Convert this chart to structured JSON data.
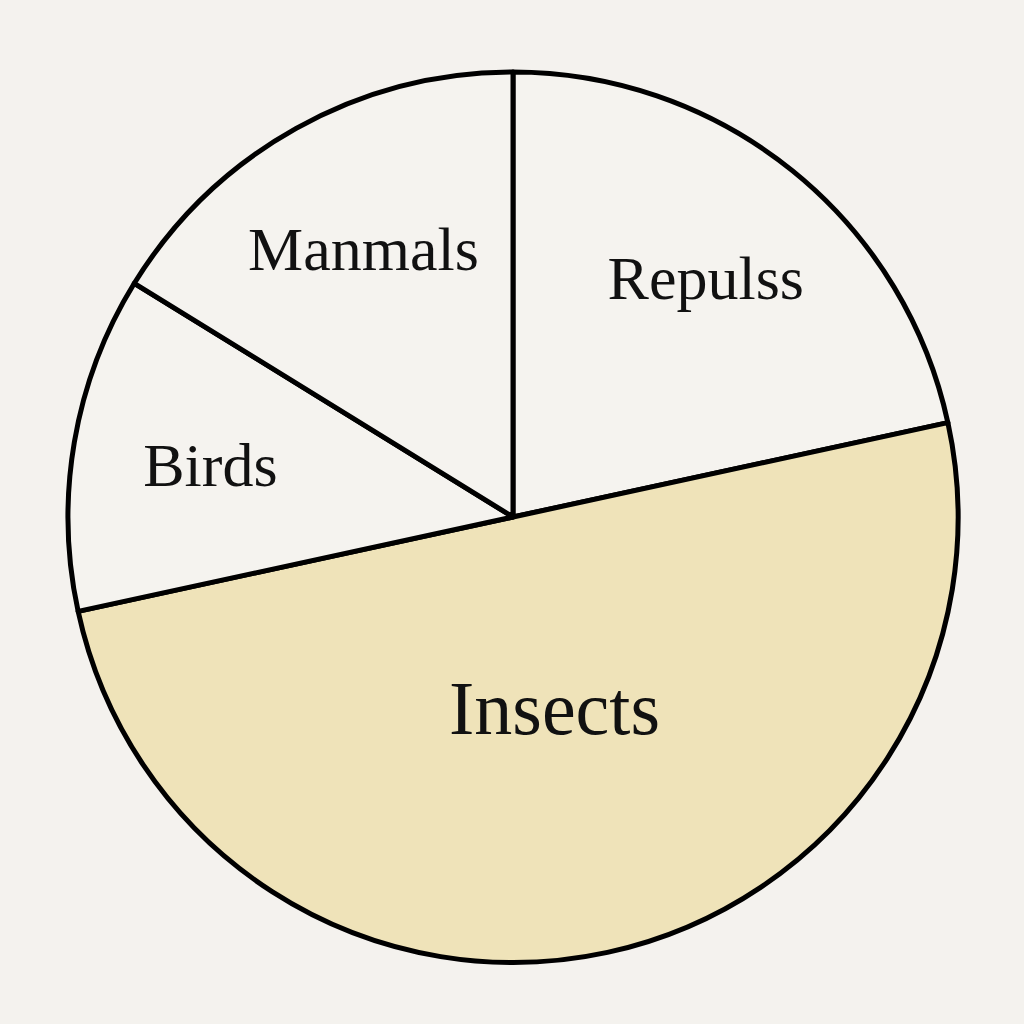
{
  "chart_data": {
    "type": "pie",
    "categories": [
      "Repulss",
      "Insects",
      "Birds",
      "Manmals"
    ],
    "values": [
      21.6,
      50,
      12.2,
      16.2
    ],
    "colors": [
      "#f5f3ef",
      "#efe3b9",
      "#f5f3ef",
      "#f5f3ef"
    ]
  }
}
